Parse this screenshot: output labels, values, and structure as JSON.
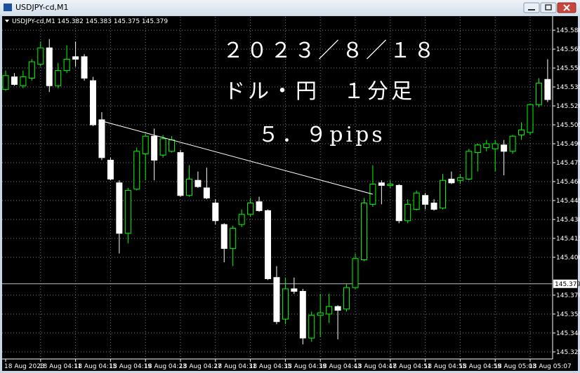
{
  "window_title": "USDJPY-cd,M1",
  "chart_data": {
    "type": "candlestick",
    "info": "USDJPY-cd,M1  145.382 145.383 145.375 145.379",
    "annotations": [
      "２０２３／８／１８",
      "ドル・円　１分足",
      "５．９pips"
    ],
    "categories": [
      "18 Aug 2023",
      null,
      null,
      null,
      "18 Aug 04:11",
      null,
      null,
      null,
      "18 Aug 04:15",
      null,
      null,
      null,
      "18 Aug 04:19",
      null,
      null,
      null,
      "18 Aug 04:23",
      null,
      null,
      null,
      "18 Aug 04:27",
      null,
      null,
      null,
      "18 Aug 04:31",
      null,
      null,
      null,
      "18 Aug 04:35",
      null,
      null,
      null,
      "18 Aug 04:39",
      null,
      null,
      null,
      "18 Aug 04:43",
      null,
      null,
      null,
      "18 Aug 04:47",
      null,
      null,
      null,
      "18 Aug 04:51",
      null,
      null,
      null,
      "18 Aug 04:55",
      null,
      null,
      null,
      "18 Aug 04:59",
      null,
      null,
      null,
      "18 Aug 05:03",
      null,
      null,
      null,
      "18 Aug 05:07",
      null,
      null
    ],
    "open": [
      145.533,
      145.543,
      145.536,
      145.542,
      145.553,
      145.566,
      145.536,
      145.548,
      145.559,
      145.559,
      145.54,
      145.509,
      145.477,
      145.459,
      145.419,
      145.454,
      145.482,
      145.496,
      145.481,
      145.484,
      145.483,
      145.449,
      145.461,
      145.455,
      145.443,
      145.426,
      145.407,
      145.426,
      145.434,
      145.444,
      145.437,
      145.384,
      145.351,
      145.375,
      145.373,
      145.336,
      145.354,
      145.355,
      145.361,
      145.359,
      145.376,
      145.398,
      145.442,
      145.459,
      145.457,
      145.457,
      145.429,
      145.438,
      145.449,
      145.443,
      145.439,
      145.462,
      145.461,
      145.462,
      145.483,
      145.487,
      145.486,
      145.489,
      145.484,
      145.497,
      145.499,
      145.521,
      145.541
    ],
    "high": [
      145.548,
      145.546,
      145.548,
      145.557,
      145.571,
      145.573,
      145.554,
      145.568,
      145.571,
      145.561,
      145.543,
      145.515,
      145.479,
      145.461,
      145.455,
      145.487,
      145.498,
      145.502,
      145.497,
      145.496,
      145.485,
      145.473,
      145.468,
      145.471,
      145.446,
      145.427,
      145.425,
      145.438,
      145.447,
      145.448,
      145.438,
      145.393,
      145.384,
      145.384,
      145.375,
      145.357,
      145.371,
      145.371,
      145.362,
      145.379,
      145.403,
      145.447,
      145.473,
      145.461,
      145.461,
      145.458,
      145.446,
      145.453,
      145.451,
      145.446,
      145.466,
      145.468,
      145.466,
      145.486,
      145.49,
      145.493,
      145.493,
      145.493,
      145.497,
      145.507,
      145.522,
      145.542,
      145.557
    ],
    "low": [
      145.532,
      145.536,
      145.534,
      145.54,
      145.551,
      145.531,
      145.534,
      145.546,
      145.551,
      145.54,
      145.504,
      145.477,
      145.461,
      145.403,
      145.411,
      145.453,
      145.461,
      145.461,
      145.479,
      145.483,
      145.448,
      145.448,
      145.455,
      145.446,
      145.426,
      145.396,
      145.393,
      145.424,
      145.432,
      145.436,
      145.382,
      145.347,
      145.347,
      145.371,
      145.331,
      145.333,
      145.337,
      145.348,
      145.335,
      145.357,
      145.375,
      145.397,
      145.44,
      145.442,
      145.455,
      145.427,
      145.427,
      145.437,
      145.438,
      145.437,
      145.438,
      145.458,
      145.458,
      145.461,
      145.468,
      145.484,
      145.468,
      145.465,
      145.482,
      145.493,
      145.497,
      145.519,
      145.523
    ],
    "close": [
      145.544,
      145.537,
      145.543,
      145.555,
      145.566,
      145.536,
      145.548,
      145.557,
      145.557,
      145.542,
      145.505,
      145.479,
      145.462,
      145.419,
      145.453,
      145.484,
      145.496,
      145.477,
      145.494,
      145.493,
      145.449,
      145.462,
      145.456,
      145.447,
      145.429,
      145.407,
      145.423,
      145.434,
      145.443,
      145.437,
      145.383,
      145.349,
      145.375,
      145.373,
      145.336,
      145.354,
      145.356,
      145.361,
      145.358,
      145.376,
      145.399,
      145.443,
      145.458,
      145.457,
      145.458,
      145.429,
      145.442,
      145.451,
      145.442,
      145.438,
      145.461,
      145.459,
      145.463,
      145.484,
      145.489,
      145.49,
      145.49,
      145.484,
      145.496,
      145.501,
      145.521,
      145.538,
      145.525
    ],
    "up_color": "#00ff00",
    "down_color": "#ffffff",
    "background": "#000000",
    "grid": true,
    "grid_color": "#6e7f8f",
    "trendline": {
      "values": [
        145.508,
        145.45
      ],
      "color": "#ffffff"
    },
    "current_price": 145.379,
    "ylim": [
      145.3194,
      145.5906
    ],
    "yticks": [
      {
        "value": 145.58,
        "label": "145.580"
      },
      145.565,
      {
        "value": 145.55,
        "label": "145.550"
      },
      145.535,
      {
        "value": 145.52,
        "label": "145.520"
      },
      145.505,
      {
        "value": 145.49,
        "label": "145.490"
      },
      145.475,
      {
        "value": 145.46,
        "label": "145.460"
      },
      145.445,
      {
        "value": 145.43,
        "label": "145.430"
      },
      145.415,
      {
        "value": 145.4,
        "label": "145.400"
      },
      {
        "value": 145.37,
        "label": "145.370"
      },
      145.355,
      {
        "value": 145.34,
        "label": "145.340"
      },
      145.325
    ]
  }
}
